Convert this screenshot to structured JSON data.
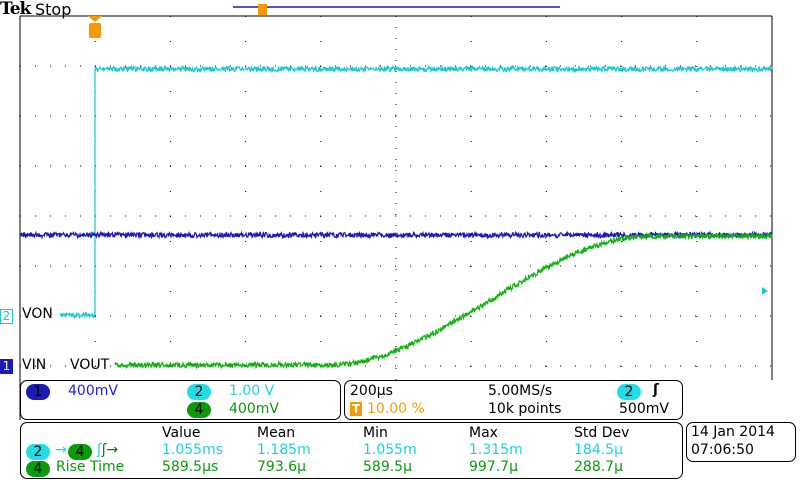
{
  "header": {
    "brand": "Tek",
    "status": "Stop"
  },
  "colors": {
    "ch1": "#1a1ab4",
    "ch2": "#19c8d0",
    "ch4": "#10b010",
    "trigger": "#f59a00"
  },
  "labels": {
    "ch2": "VON",
    "ch1": "VIN",
    "ch4": "VOUT"
  },
  "channels": {
    "ch1": {
      "num": "1",
      "scale": "400mV"
    },
    "ch2": {
      "num": "2",
      "scale": "1.00 V"
    },
    "ch4": {
      "num": "4",
      "scale": "400mV"
    }
  },
  "timebase": {
    "horizontal": "200µs",
    "sample_rate": "5.00MS/s",
    "trigger_pos": "10.00 %",
    "record": "10k points",
    "trigger_src": "2",
    "trigger_slope": "rising-edge-icon",
    "trigger_level": "500mV",
    "trigger_icon": "T"
  },
  "measurements": {
    "headers": [
      "Value",
      "Mean",
      "Min",
      "Max",
      "Std Dev"
    ],
    "rows": [
      {
        "src": "2",
        "dst": "4",
        "label": "",
        "values": [
          "1.055ms",
          "1.185m",
          "1.055m",
          "1.315m",
          "184.5µ"
        ]
      },
      {
        "src": "4",
        "label": "Rise Time",
        "values": [
          "589.5µs",
          "793.6µ",
          "589.5µ",
          "997.7µ",
          "288.7µ"
        ]
      }
    ]
  },
  "datetime": {
    "date": "14 Jan  2014",
    "time": "07:06:50"
  }
}
